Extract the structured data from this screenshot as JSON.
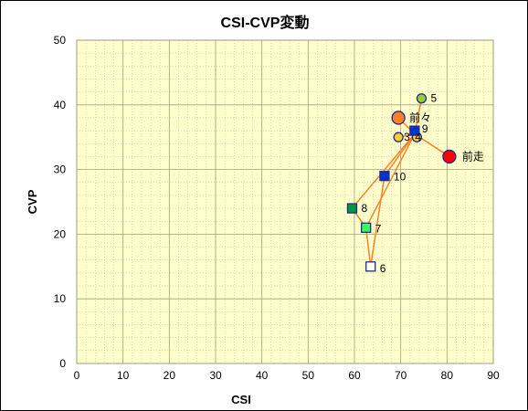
{
  "chart_data": {
    "type": "scatter",
    "title": "CSI-CVP変動",
    "xlabel": "CSI",
    "ylabel": "CVP",
    "xlim": [
      0,
      90
    ],
    "ylim": [
      0,
      50
    ],
    "xticks": [
      0,
      10,
      20,
      30,
      40,
      50,
      60,
      70,
      80,
      90
    ],
    "yticks": [
      0,
      10,
      20,
      30,
      40,
      50
    ],
    "grid": true,
    "legend": "none",
    "colors": {
      "plot_bg": "#ffffcc",
      "grid": "#b8b8a0",
      "line": "#ff7f27",
      "marker_edge": "#1f2d8a"
    },
    "hub": {
      "x": 73,
      "y": 35.5
    },
    "points": [
      {
        "id": "前走",
        "label": "前走",
        "x": 80.5,
        "y": 32,
        "shape": "circle",
        "size": "large",
        "fill": "#ff0000"
      },
      {
        "id": "前々",
        "label": "前々",
        "x": 69.5,
        "y": 38,
        "shape": "circle",
        "size": "large",
        "fill": "#ff7f27"
      },
      {
        "id": "3",
        "label": "3",
        "x": 69.5,
        "y": 35,
        "shape": "circle",
        "size": "small",
        "fill": "#ffcc33"
      },
      {
        "id": "4",
        "label": "4",
        "x": 73.5,
        "y": 35,
        "shape": "circle",
        "size": "small",
        "fill": "#ffcc33"
      },
      {
        "id": "5",
        "label": "5",
        "x": 74.5,
        "y": 41,
        "shape": "circle",
        "size": "small",
        "fill": "#99cc33"
      },
      {
        "id": "6",
        "label": "6",
        "x": 63.5,
        "y": 15,
        "shape": "square",
        "size": "small",
        "fill": "#ffffff"
      },
      {
        "id": "7",
        "label": "7",
        "x": 62.5,
        "y": 21,
        "shape": "square",
        "size": "small",
        "fill": "#33ff66"
      },
      {
        "id": "8",
        "label": "8",
        "x": 59.5,
        "y": 24,
        "shape": "square",
        "size": "small",
        "fill": "#009933"
      },
      {
        "id": "9",
        "label": "9",
        "x": 73,
        "y": 36,
        "shape": "square",
        "size": "small",
        "fill": "#0033cc"
      },
      {
        "id": "10",
        "label": "10",
        "x": 66.5,
        "y": 29,
        "shape": "square",
        "size": "small",
        "fill": "#0033cc"
      }
    ],
    "connections": [
      [
        "前走",
        "hub"
      ],
      [
        "前々",
        "hub"
      ],
      [
        "3",
        "hub"
      ],
      [
        "4",
        "hub"
      ],
      [
        "5",
        "hub"
      ],
      [
        "9",
        "hub"
      ],
      [
        "10",
        "hub"
      ],
      [
        "8",
        "hub"
      ],
      [
        "7",
        "hub"
      ],
      [
        "8",
        "7"
      ],
      [
        "7",
        "6"
      ],
      [
        "6",
        "10"
      ]
    ]
  }
}
